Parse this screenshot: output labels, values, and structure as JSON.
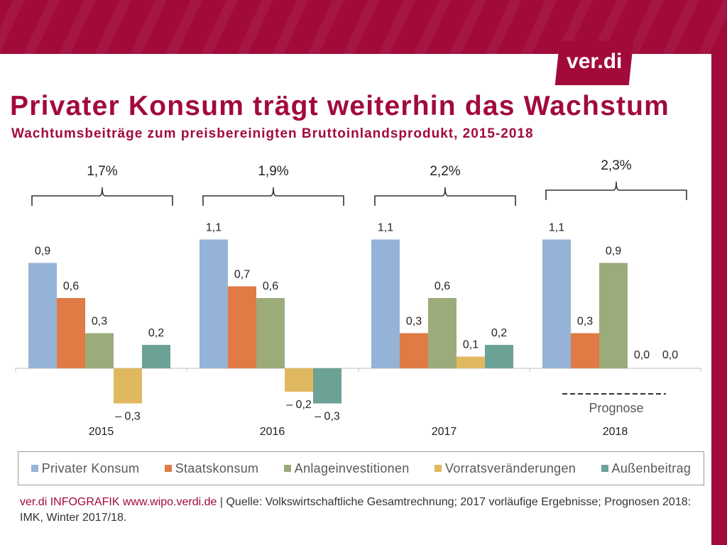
{
  "logo": {
    "text": "ver.di"
  },
  "header": {
    "title": "Privater Konsum trägt weiterhin das Wachstum",
    "subtitle": "Wachtumsbeiträge zum preisbereinigten Bruttoinlandsprodukt, 2015-2018"
  },
  "footer": {
    "source": "ver.di INFOGRAFIK www.wipo.verdi.de",
    "text": " | Quelle: Volkswirtschaftliche Gesamtrechnung; 2017 vorläufige Ergebnisse; Prognosen 2018: IMK, Winter 2017/18."
  },
  "colors": {
    "brand": "#a20a3a",
    "series": [
      "#95b3d7",
      "#e07b45",
      "#9bab7a",
      "#e0b860",
      "#6ca196"
    ]
  },
  "prognose_label": "Prognose",
  "chart_data": {
    "type": "bar",
    "categories": [
      "2015",
      "2016",
      "2017",
      "2018"
    ],
    "totals": [
      "1,7%",
      "1,9%",
      "2,2%",
      "2,3%"
    ],
    "series": [
      {
        "name": "Privater Konsum",
        "values": [
          0.9,
          1.1,
          1.1,
          1.1
        ],
        "labels": [
          "0,9",
          "1,1",
          "1,1",
          "1,1"
        ]
      },
      {
        "name": "Staatskonsum",
        "values": [
          0.6,
          0.7,
          0.3,
          0.3
        ],
        "labels": [
          "0,6",
          "0,7",
          "0,3",
          "0,3"
        ]
      },
      {
        "name": "Anlageinvestitionen",
        "values": [
          0.3,
          0.6,
          0.6,
          0.9
        ],
        "labels": [
          "0,3",
          "0,6",
          "0,6",
          "0,9"
        ]
      },
      {
        "name": "Vorratsveränderungen",
        "values": [
          -0.3,
          -0.2,
          0.1,
          0.0
        ],
        "labels": [
          "– 0,3",
          "– 0,2",
          "0,1",
          "0,0"
        ]
      },
      {
        "name": "Außenbeitrag",
        "values": [
          0.2,
          -0.3,
          0.2,
          0.0
        ],
        "labels": [
          "0,2",
          "– 0,3",
          "0,2",
          "0,0"
        ]
      }
    ],
    "title": "",
    "xlabel": "",
    "ylabel": "",
    "ylim": [
      -0.4,
      1.2
    ],
    "grid": false,
    "legend": "bottom"
  }
}
